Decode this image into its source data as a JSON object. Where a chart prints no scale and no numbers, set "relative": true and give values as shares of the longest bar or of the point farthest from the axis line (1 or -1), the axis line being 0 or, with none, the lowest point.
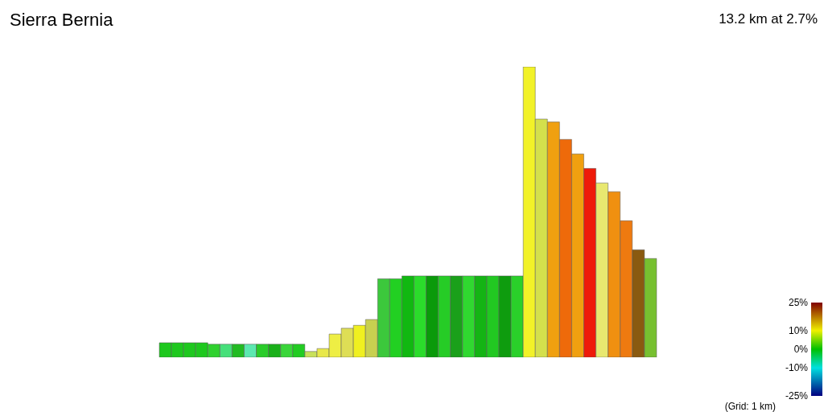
{
  "chart_data": {
    "type": "bar",
    "title": "Sierra Bernia",
    "subtitle": "13.2 km at 2.7%",
    "relative": true,
    "clim": [
      -25,
      25
    ],
    "cticks": [
      {
        "value": 25,
        "label": "25%"
      },
      {
        "value": 10,
        "label": "10%"
      },
      {
        "value": 0,
        "label": "0%"
      },
      {
        "value": -10,
        "label": "-10%"
      },
      {
        "value": -25,
        "label": "-25%"
      }
    ],
    "annotations": [
      "(Grid: 1 km)"
    ],
    "categories": [
      null,
      null,
      null,
      null,
      null,
      null,
      null,
      null,
      null,
      null,
      null,
      null,
      null,
      null,
      null,
      null,
      null,
      null,
      null,
      null,
      null,
      null,
      null,
      null,
      null,
      null,
      null,
      null,
      null,
      null,
      null,
      null,
      null,
      null,
      null,
      null,
      null,
      null,
      null,
      null,
      null
    ],
    "values": [
      0.05,
      0.05,
      0.05,
      0.05,
      0.045,
      0.045,
      0.045,
      0.045,
      0.045,
      0.045,
      0.045,
      0.045,
      0.02,
      0.03,
      0.08,
      0.1,
      0.11,
      0.13,
      0.27,
      0.27,
      0.28,
      0.28,
      0.28,
      0.28,
      0.28,
      0.28,
      0.28,
      0.28,
      0.28,
      0.28,
      1,
      0.82,
      0.81,
      0.75,
      0.7,
      0.65,
      0.6,
      0.57,
      0.47,
      0.37,
      0.34
    ],
    "colors": [
      "#1ec81e",
      "#1ec81e",
      "#1ec81e",
      "#1ec81e",
      "#2fd12f",
      "#46e07a",
      "#22bb22",
      "#5ce8b0",
      "#2acc2a",
      "#19b019",
      "#3ad63a",
      "#22cc22",
      "#c8e05a",
      "#e8e84a",
      "#eeee44",
      "#dede55",
      "#f0f020",
      "#c8d050",
      "#3cc83c",
      "#22d022",
      "#11b811",
      "#2bdc2b",
      "#0a9a0a",
      "#26cc26",
      "#1aa01a",
      "#30d830",
      "#14b414",
      "#22c822",
      "#0e9c0e",
      "#2ad02a",
      "#f2f228",
      "#d4e04c",
      "#f0a010",
      "#ee6a0a",
      "#f0a010",
      "#ee1a0a",
      "#e8e870",
      "#f09010",
      "#ee7a10",
      "#8a5a10",
      "#77c030"
    ]
  }
}
